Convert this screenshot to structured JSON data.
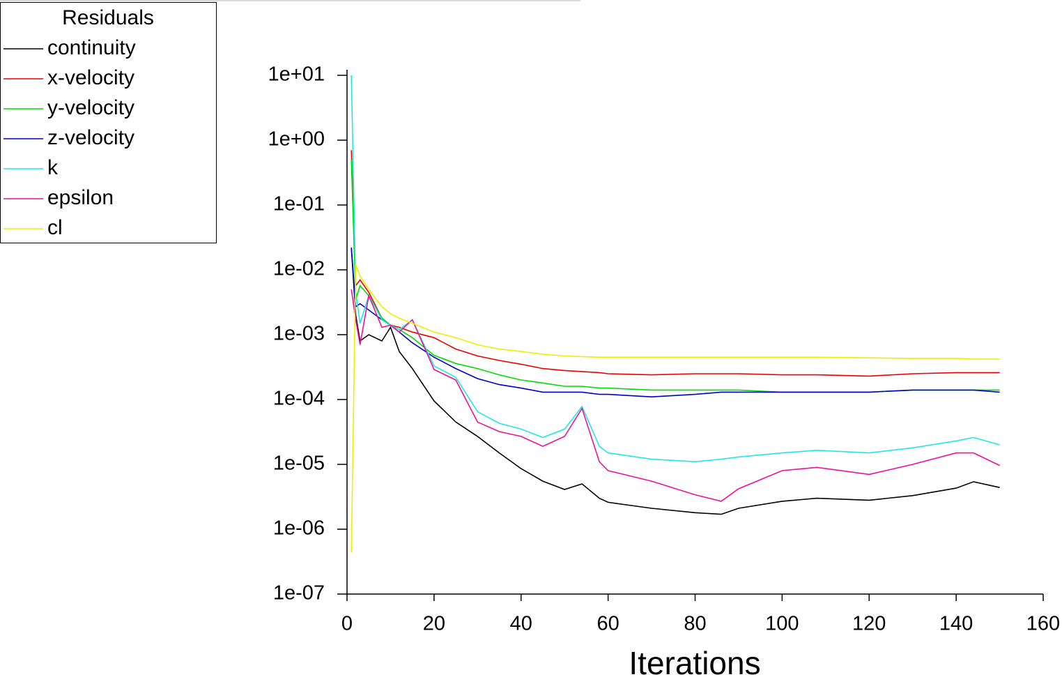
{
  "chart_data": {
    "type": "line",
    "legend_title": "Residuals",
    "xlabel": "Iterations",
    "ylog": true,
    "legend_position": "top-left",
    "xlim": [
      0,
      160
    ],
    "xticks": [
      0,
      20,
      40,
      60,
      80,
      100,
      120,
      140,
      160
    ],
    "ylim": [
      1e-07,
      10
    ],
    "yticks": [
      {
        "value": 10,
        "label": "1e+01"
      },
      {
        "value": 1,
        "label": "1e+00"
      },
      {
        "value": 0.1,
        "label": "1e-01"
      },
      {
        "value": 0.01,
        "label": "1e-02"
      },
      {
        "value": 0.001,
        "label": "1e-03"
      },
      {
        "value": 0.0001,
        "label": "1e-04"
      },
      {
        "value": 1e-05,
        "label": "1e-05"
      },
      {
        "value": 1e-06,
        "label": "1e-06"
      },
      {
        "value": 1e-07,
        "label": "1e-07"
      }
    ],
    "x": [
      1,
      2,
      3,
      5,
      8,
      10,
      12,
      15,
      20,
      25,
      30,
      35,
      40,
      45,
      50,
      54,
      58,
      60,
      70,
      80,
      86,
      90,
      100,
      108,
      120,
      130,
      140,
      144,
      150
    ],
    "series": [
      {
        "name": "continuity",
        "color": "#000000",
        "values": [
          0.022,
          0.002,
          0.0008,
          0.001,
          0.0008,
          0.0013,
          0.00055,
          0.0003,
          9.5e-05,
          4.5e-05,
          2.7e-05,
          1.5e-05,
          8.6e-06,
          5.5e-06,
          4.1e-06,
          5e-06,
          3e-06,
          2.6e-06,
          2.1e-06,
          1.8e-06,
          1.7e-06,
          2.1e-06,
          2.7e-06,
          3e-06,
          2.8e-06,
          3.3e-06,
          4.3e-06,
          5.4e-06,
          4.4e-06
        ]
      },
      {
        "name": "x-velocity",
        "color": "#ee0000",
        "values": [
          0.7,
          0.0057,
          0.007,
          0.0045,
          0.0018,
          0.0014,
          0.0013,
          0.0011,
          0.0009,
          0.0006,
          0.00047,
          0.0004,
          0.00035,
          0.0003,
          0.00028,
          0.00027,
          0.00026,
          0.00025,
          0.00024,
          0.00025,
          0.00025,
          0.00025,
          0.00024,
          0.00024,
          0.00023,
          0.00025,
          0.00026,
          0.00026,
          0.00026
        ]
      },
      {
        "name": "y-velocity",
        "color": "#00dd00",
        "values": [
          0.5,
          0.0035,
          0.0057,
          0.004,
          0.0018,
          0.0014,
          0.0012,
          0.0009,
          0.00048,
          0.00036,
          0.0003,
          0.00024,
          0.0002,
          0.00018,
          0.00016,
          0.00016,
          0.00015,
          0.00015,
          0.00014,
          0.00014,
          0.00014,
          0.00014,
          0.00013,
          0.00013,
          0.00013,
          0.00014,
          0.00014,
          0.00014,
          0.00014
        ]
      },
      {
        "name": "z-velocity",
        "color": "#0000cc",
        "values": [
          0.022,
          0.0027,
          0.003,
          0.0024,
          0.0017,
          0.0014,
          0.0011,
          0.00075,
          0.00045,
          0.0003,
          0.00021,
          0.00017,
          0.00015,
          0.00013,
          0.00013,
          0.00013,
          0.00012,
          0.00012,
          0.00011,
          0.00012,
          0.00013,
          0.00013,
          0.00013,
          0.00013,
          0.00013,
          0.00014,
          0.00014,
          0.00014,
          0.00013
        ]
      },
      {
        "name": "k",
        "color": "#22e6e6",
        "values": [
          10,
          0.0045,
          0.0015,
          0.004,
          0.0017,
          0.0014,
          0.0012,
          0.0017,
          0.00033,
          0.00022,
          6.5e-05,
          4.3e-05,
          3.5e-05,
          2.6e-05,
          3.5e-05,
          7.8e-05,
          1.9e-05,
          1.5e-05,
          1.2e-05,
          1.1e-05,
          1.2e-05,
          1.3e-05,
          1.5e-05,
          1.65e-05,
          1.5e-05,
          1.8e-05,
          2.3e-05,
          2.6e-05,
          2e-05
        ]
      },
      {
        "name": "epsilon",
        "color": "#ee1199",
        "values": [
          0.005,
          0.0017,
          0.0007,
          0.004,
          0.0013,
          0.0014,
          0.0011,
          0.0017,
          0.00029,
          0.0002,
          4.5e-05,
          3.2e-05,
          2.7e-05,
          1.9e-05,
          2.7e-05,
          7.3e-05,
          1.1e-05,
          8e-06,
          5.5e-06,
          3.4e-06,
          2.7e-06,
          4.2e-06,
          8e-06,
          9e-06,
          7e-06,
          1e-05,
          1.5e-05,
          1.5e-05,
          9.6e-06
        ]
      },
      {
        "name": "cl",
        "color": "#eeee00",
        "values": [
          4.4e-07,
          0.012,
          0.008,
          0.005,
          0.0027,
          0.0021,
          0.0018,
          0.0015,
          0.0011,
          0.0009,
          0.0007,
          0.0006,
          0.00055,
          0.0005,
          0.00047,
          0.00046,
          0.00045,
          0.00045,
          0.00045,
          0.00045,
          0.00045,
          0.00045,
          0.00045,
          0.00045,
          0.00044,
          0.00043,
          0.00043,
          0.00042,
          0.00042
        ]
      }
    ]
  }
}
